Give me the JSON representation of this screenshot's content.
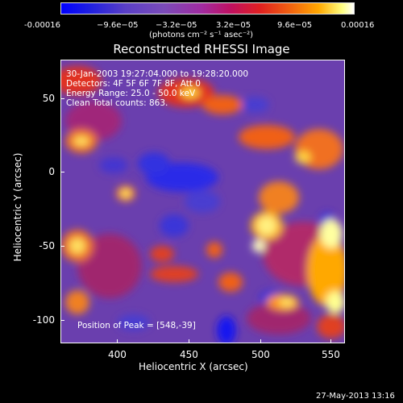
{
  "colorbar": {
    "tick_labels": [
      "-0.00016",
      "−9.6e−05",
      "−3.2e−05",
      "3.2e−05",
      "9.6e−05",
      "0.00016"
    ],
    "units": "(photons cm⁻² s⁻¹ asec⁻²)"
  },
  "title": "Reconstructed RHESSI Image",
  "annotations": {
    "time_range": "30-Jan-2003 19:27:04.000 to 19:28:20.000",
    "detectors": "Detectors: 4F 5F 6F 7F 8F, Att 0",
    "energy_range": "Energy Range: 25.0 - 50.0 keV",
    "clean": "Clean    Total counts: 863.",
    "peak": "Position of Peak = [548,-39]"
  },
  "axes": {
    "xlabel": "Heliocentric X (arcsec)",
    "ylabel": "Heliocentric Y (arcsec)",
    "x_ticks": [
      "400",
      "450",
      "500",
      "550"
    ],
    "y_ticks": [
      "50",
      "0",
      "-50",
      "-100"
    ]
  },
  "footer": "27-May-2013 13:16"
}
